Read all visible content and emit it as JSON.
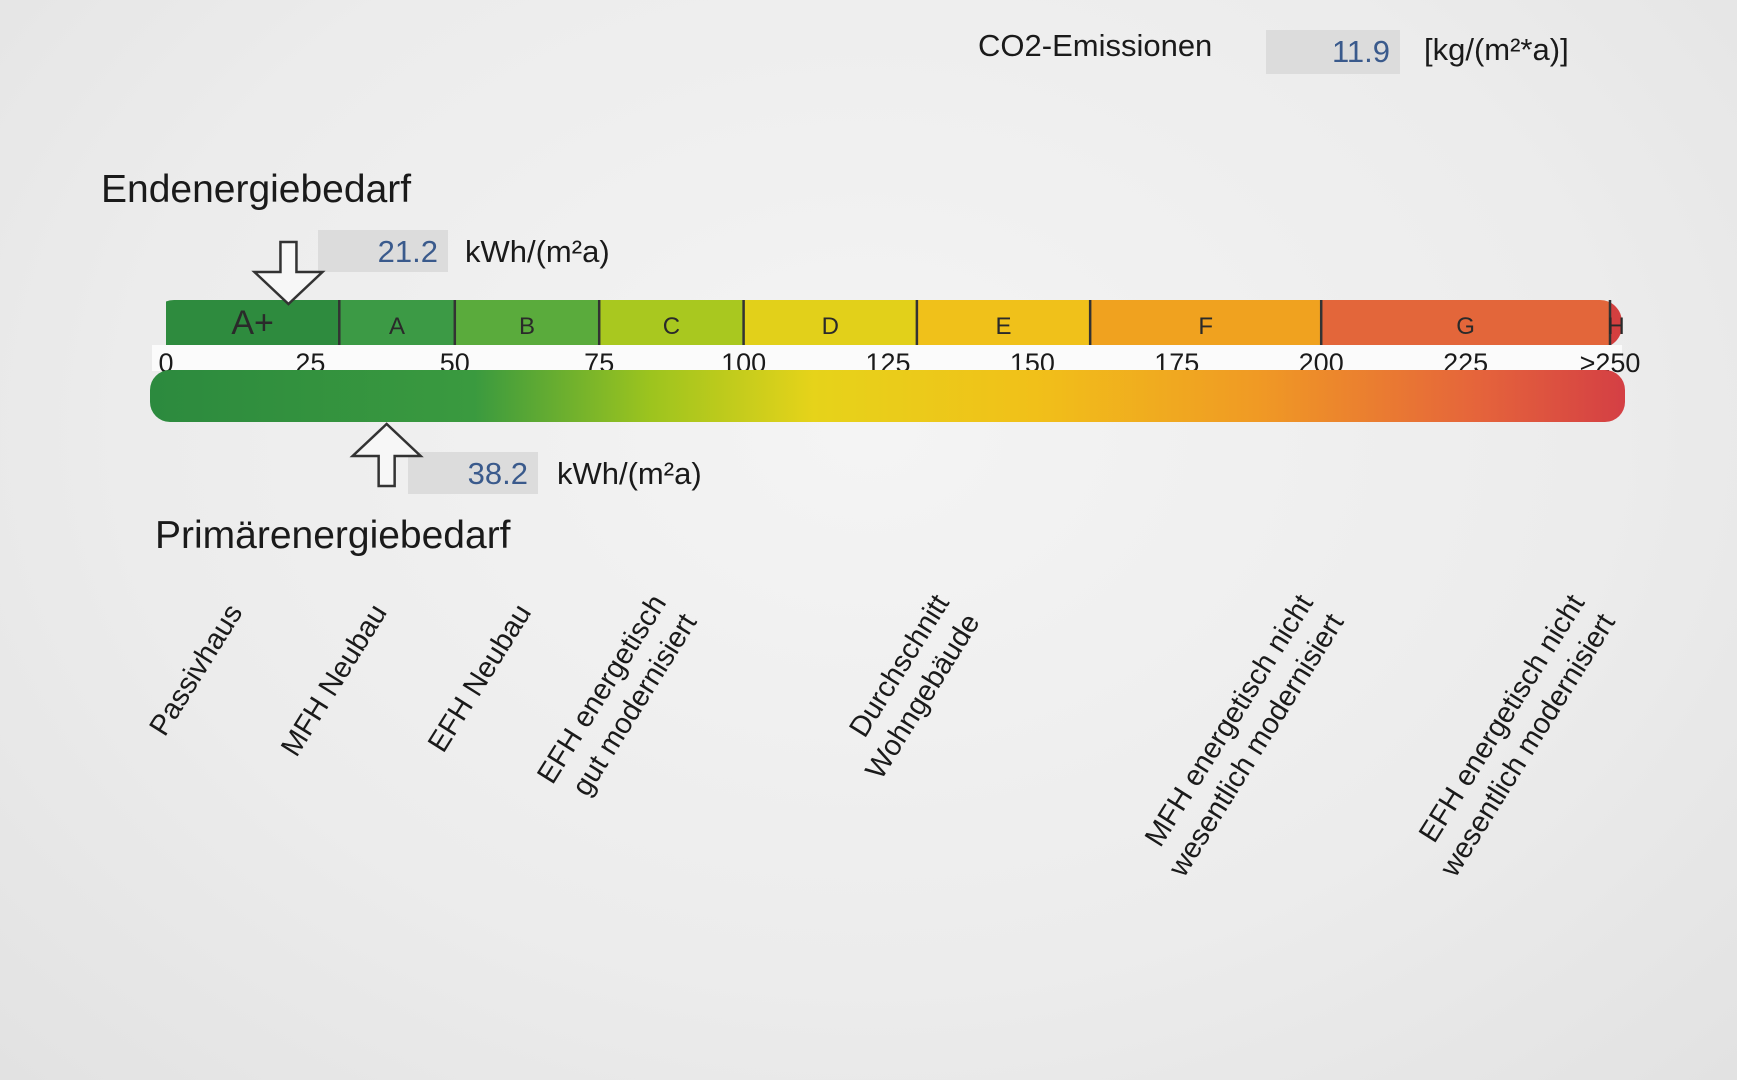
{
  "co2": {
    "label": "CO2-Emissionen",
    "value": "11.9",
    "unit": "[kg/(m²*a)]"
  },
  "endenergie": {
    "label": "Endenergiebedarf",
    "value": "21.2",
    "unit": "kWh/(m²a)"
  },
  "primaerenergie": {
    "label": "Primärenergiebedarf",
    "value": "38.2",
    "unit": "kWh/(m²a)"
  },
  "chart_data": {
    "type": "bar",
    "scale_min": 0,
    "scale_max": 275,
    "ticks": [
      "0",
      "25",
      "50",
      "75",
      "100",
      "125",
      "150",
      "175",
      "200",
      "225",
      ">250"
    ],
    "tick_values": [
      0,
      25,
      50,
      75,
      100,
      125,
      150,
      175,
      200,
      225,
      250
    ],
    "classes": [
      {
        "label": "A+",
        "from": 0,
        "to": 30,
        "color": "#2e8b3e"
      },
      {
        "label": "A",
        "from": 30,
        "to": 50,
        "color": "#3c9a45"
      },
      {
        "label": "B",
        "from": 50,
        "to": 75,
        "color": "#5aab3c"
      },
      {
        "label": "C",
        "from": 75,
        "to": 100,
        "color": "#a9c81f"
      },
      {
        "label": "D",
        "from": 100,
        "to": 130,
        "color": "#e2d01a"
      },
      {
        "label": "E",
        "from": 130,
        "to": 160,
        "color": "#f0c11a"
      },
      {
        "label": "F",
        "from": 160,
        "to": 200,
        "color": "#f0a21f"
      },
      {
        "label": "G",
        "from": 200,
        "to": 250,
        "color": "#e3663a"
      },
      {
        "label": "H",
        "from": 250,
        "to": 275,
        "color": "#d43f3f"
      }
    ],
    "endenergie_value": 21.2,
    "primaerenergie_value": 38.2,
    "reference_values": [
      12,
      37,
      62,
      88,
      137,
      200,
      247
    ],
    "references": [
      {
        "lines": [
          "Passivhaus"
        ]
      },
      {
        "lines": [
          "MFH Neubau"
        ]
      },
      {
        "lines": [
          "EFH Neubau"
        ]
      },
      {
        "lines": [
          "EFH energetisch",
          "gut modernisiert"
        ]
      },
      {
        "lines": [
          "Durchschnitt",
          "Wohngebäude"
        ]
      },
      {
        "lines": [
          "MFH energetisch nicht",
          "wesentlich modernisiert"
        ]
      },
      {
        "lines": [
          "EFH energetisch nicht",
          "wesentlich modernisiert"
        ]
      }
    ]
  }
}
